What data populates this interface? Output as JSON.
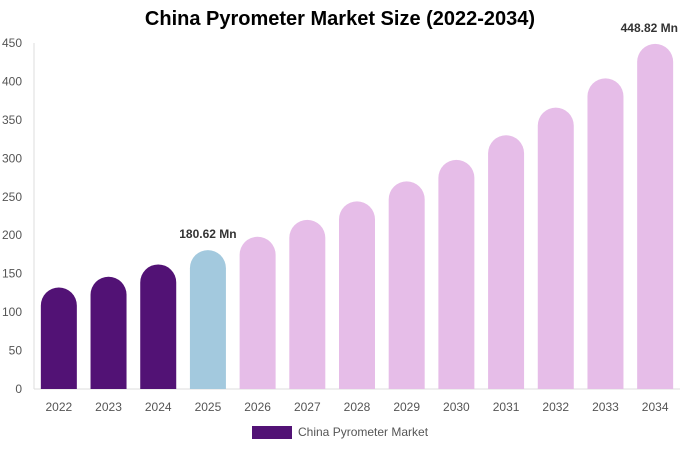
{
  "chart_data": {
    "type": "bar",
    "title": "China Pyrometer Market Size (2022-2034)",
    "categories": [
      "2022",
      "2023",
      "2024",
      "2025",
      "2026",
      "2027",
      "2028",
      "2029",
      "2030",
      "2031",
      "2032",
      "2033",
      "2034"
    ],
    "series": [
      {
        "name": "China Pyrometer Market",
        "values": [
          132,
          146,
          162,
          180.62,
          198,
          220,
          244,
          270,
          298,
          330,
          366,
          404,
          448.82
        ]
      }
    ],
    "ylim": [
      0,
      450
    ],
    "yticks": [
      0,
      50,
      100,
      150,
      200,
      250,
      300,
      350,
      400,
      450
    ],
    "data_labels": [
      {
        "category": "2025",
        "text": "180.62 Mn"
      },
      {
        "category": "2034",
        "text": "448.82 Mn"
      }
    ],
    "grid": false,
    "legend_position": "bottom",
    "colors": {
      "historical": "#521275",
      "current": "#a3c9de",
      "forecast": "#e6bde8",
      "legend": "#521275"
    }
  }
}
